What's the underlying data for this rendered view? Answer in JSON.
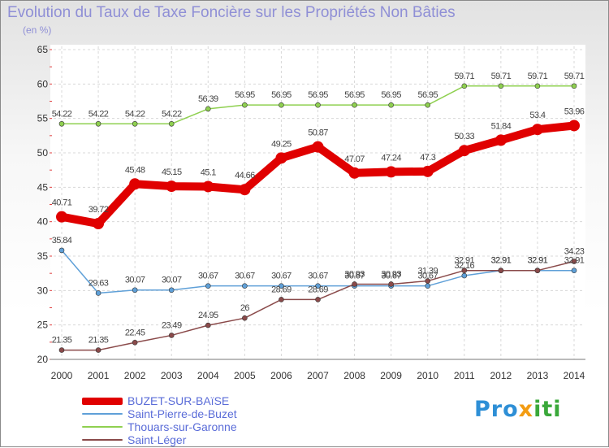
{
  "title": "Evolution du Taux de Taxe Foncière sur les Propriétés Non Bâties",
  "subtitle": "(en %)",
  "logo": {
    "text": "Proxiti",
    "colors": [
      "#2e8fd6",
      "#f39c12",
      "#3aa83a"
    ]
  },
  "chart_data": {
    "type": "line",
    "title": "Evolution du Taux de Taxe Foncière sur les Propriétés Non Bâties",
    "subtitle": "(en %)",
    "xlabel": "",
    "ylabel": "",
    "x": [
      "2000",
      "2001",
      "2002",
      "2003",
      "2004",
      "2005",
      "2006",
      "2007",
      "2008",
      "2009",
      "2010",
      "2011",
      "2012",
      "2013",
      "2014"
    ],
    "ylim": [
      20,
      65
    ],
    "yticks": [
      "20",
      "25",
      "30",
      "35",
      "40",
      "45",
      "50",
      "55",
      "60",
      "65"
    ],
    "grid": true,
    "legend_position": "bottom-left",
    "series": [
      {
        "name": "BUZET-SUR-BAïSE",
        "color": "#e00000",
        "values": [
          40.71,
          39.72,
          45.48,
          45.15,
          45.1,
          44.66,
          49.25,
          50.87,
          47.07,
          47.24,
          47.3,
          50.33,
          51.84,
          53.4,
          53.96
        ],
        "labels": [
          "40.71",
          "39.72",
          "45.48",
          "45.15",
          "45.1",
          "44.66",
          "49.25",
          "50.87",
          "47.07",
          "47.24",
          "47.3",
          "50.33",
          "51.84",
          "53.4",
          "53.96"
        ]
      },
      {
        "name": "Saint-Pierre-de-Buzet",
        "color": "#5fa0d8",
        "values": [
          35.84,
          29.63,
          30.07,
          30.07,
          30.67,
          30.67,
          30.67,
          30.67,
          30.67,
          30.67,
          30.67,
          32.16,
          32.91,
          32.91,
          32.91
        ],
        "labels": [
          "35.84",
          "29.63",
          "30.07",
          "30.07",
          "30.67",
          "30.67",
          "30.67",
          "30.67",
          "30.67",
          "30.67",
          "30.67",
          "32.16",
          "32.91",
          "32.91",
          "32.91"
        ]
      },
      {
        "name": "Thouars-sur-Garonne",
        "color": "#8fd050",
        "values": [
          54.22,
          54.22,
          54.22,
          54.22,
          56.39,
          56.95,
          56.95,
          56.95,
          56.95,
          56.95,
          56.95,
          59.71,
          59.71,
          59.71,
          59.71
        ],
        "labels": [
          "54.22",
          "54.22",
          "54.22",
          "54.22",
          "56.39",
          "56.95",
          "56.95",
          "56.95",
          "56.95",
          "56.95",
          "56.95",
          "59.71",
          "59.71",
          "59.71",
          "59.71"
        ]
      },
      {
        "name": "Saint-Léger",
        "color": "#8a4a4a",
        "values": [
          21.35,
          21.35,
          22.45,
          23.49,
          24.95,
          26,
          28.69,
          28.69,
          30.93,
          30.93,
          31.39,
          32.91,
          32.91,
          32.91,
          34.23
        ],
        "labels": [
          "21.35",
          "21.35",
          "22.45",
          "23.49",
          "24.95",
          "26",
          "28.69",
          "28.69",
          "30.93",
          "30.93",
          "31.39",
          "32.91",
          "32.91",
          "32.91",
          "34.23"
        ]
      }
    ]
  }
}
